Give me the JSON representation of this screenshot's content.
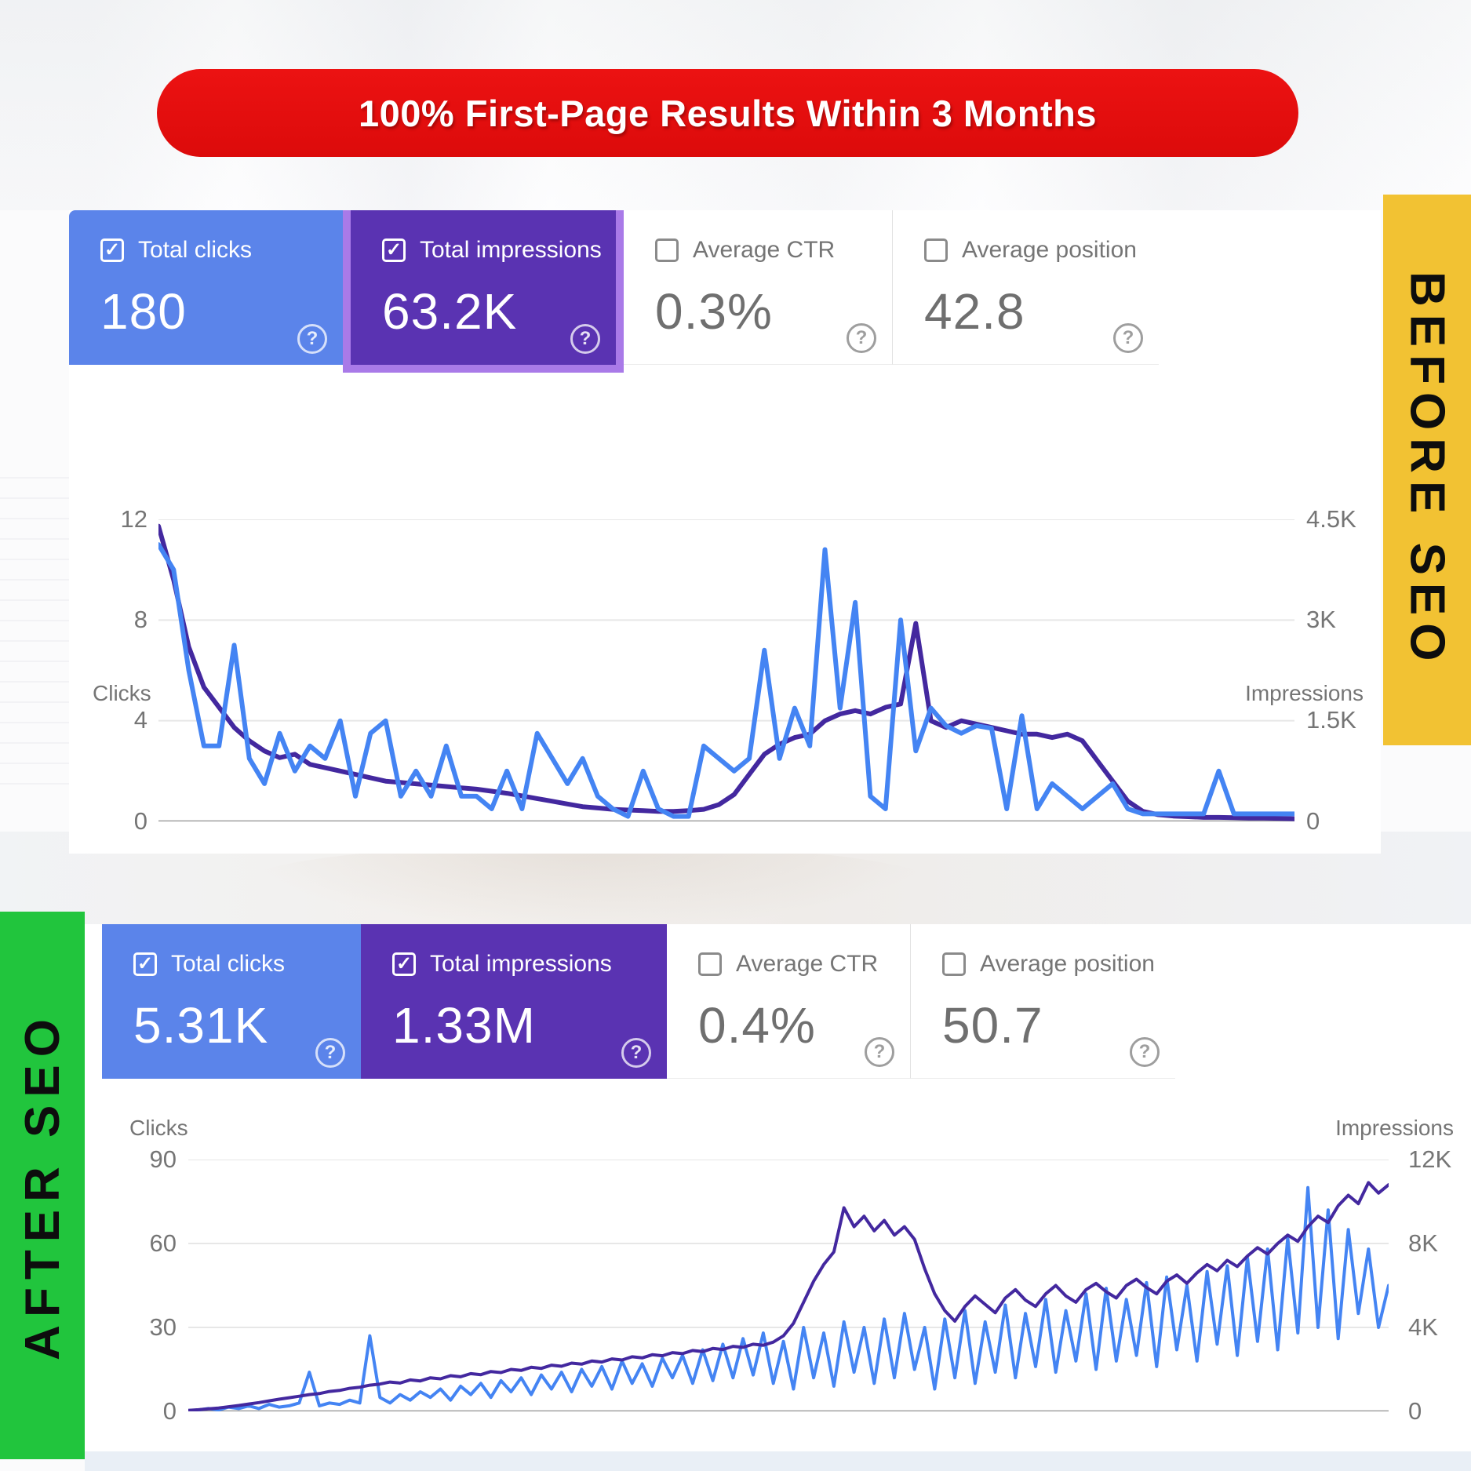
{
  "banner": {
    "text": "100% First-Page Results Within 3 Months"
  },
  "ribbons": {
    "before_label": "BEFORE SEO",
    "after_label": "AFTER SEO"
  },
  "colors": {
    "banner_red": "#e90f0f",
    "ribbon_yellow": "#f2c233",
    "ribbon_green": "#21c53d",
    "card_blue": "#5b84ea",
    "card_purple": "#5a33b2",
    "card_purple_outline": "#a97ae8",
    "line_blue": "#4484f3",
    "line_indigo": "#43289f",
    "muted_text": "#757575"
  },
  "before": {
    "cards": [
      {
        "label": "Total clicks",
        "value": "180",
        "selected": true
      },
      {
        "label": "Total impressions",
        "value": "63.2K",
        "selected": true
      },
      {
        "label": "Average CTR",
        "value": "0.3%",
        "selected": false
      },
      {
        "label": "Average position",
        "value": "42.8",
        "selected": false
      }
    ]
  },
  "after": {
    "cards": [
      {
        "label": "Total clicks",
        "value": "5.31K",
        "selected": true
      },
      {
        "label": "Total impressions",
        "value": "1.33M",
        "selected": true
      },
      {
        "label": "Average CTR",
        "value": "0.4%",
        "selected": false
      },
      {
        "label": "Average position",
        "value": "50.7",
        "selected": false
      }
    ]
  },
  "chart_data": [
    {
      "type": "line",
      "title": "Search performance before SEO",
      "grid": true,
      "legend_position": "none",
      "left_axis": {
        "label": "Clicks",
        "ticks": [
          "12",
          "8",
          "4",
          "0"
        ],
        "range": [
          0,
          12
        ]
      },
      "right_axis": {
        "label": "Impressions",
        "ticks": [
          "4.5K",
          "3K",
          "1.5K",
          "0"
        ],
        "range": [
          0,
          4500
        ]
      },
      "series": [
        {
          "name": "Impressions",
          "axis": "right",
          "color": "#43289f",
          "width": 6,
          "values": [
            4400,
            3600,
            2600,
            2000,
            1700,
            1400,
            1200,
            1050,
            950,
            1000,
            850,
            800,
            750,
            700,
            650,
            600,
            580,
            560,
            540,
            520,
            500,
            480,
            450,
            420,
            380,
            340,
            300,
            260,
            220,
            200,
            180,
            170,
            160,
            150,
            150,
            160,
            180,
            250,
            400,
            700,
            1000,
            1150,
            1250,
            1300,
            1500,
            1600,
            1650,
            1600,
            1700,
            1750,
            2950,
            1500,
            1400,
            1500,
            1450,
            1400,
            1350,
            1300,
            1300,
            1250,
            1300,
            1200,
            900,
            600,
            300,
            150,
            100,
            80,
            70,
            60,
            60,
            55,
            50,
            50,
            45,
            40
          ]
        },
        {
          "name": "Clicks",
          "axis": "left",
          "color": "#4484f3",
          "width": 6,
          "values": [
            11,
            10,
            6,
            3,
            3,
            7,
            2.5,
            1.5,
            3.5,
            2,
            3,
            2.5,
            4,
            1,
            3.5,
            4,
            1,
            2,
            1,
            3,
            1,
            1,
            0.5,
            2,
            0.5,
            3.5,
            2.5,
            1.5,
            2.5,
            1,
            0.5,
            0.2,
            2,
            0.5,
            0.2,
            0.2,
            3,
            2.5,
            2,
            2.5,
            6.8,
            2.5,
            4.5,
            3,
            10.8,
            4.5,
            8.7,
            1,
            0.5,
            8,
            2.8,
            4.5,
            3.8,
            3.5,
            3.8,
            3.7,
            0.5,
            4.2,
            0.5,
            1.5,
            1,
            0.5,
            1,
            1.5,
            0.5,
            0.3,
            0.3,
            0.3,
            0.3,
            0.3,
            2,
            0.3,
            0.3,
            0.3,
            0.3,
            0.3
          ]
        }
      ]
    },
    {
      "type": "line",
      "title": "Search performance after SEO",
      "grid": true,
      "legend_position": "none",
      "left_axis": {
        "label": "Clicks",
        "ticks": [
          "90",
          "60",
          "30",
          "0"
        ],
        "range": [
          0,
          90
        ]
      },
      "right_axis": {
        "label": "Impressions",
        "ticks": [
          "12K",
          "8K",
          "4K",
          "0"
        ],
        "range": [
          0,
          12000
        ]
      },
      "series": [
        {
          "name": "Clicks",
          "axis": "left",
          "color": "#4484f3",
          "width": 4,
          "values": [
            0.3,
            0.5,
            1,
            0.5,
            1.5,
            1,
            2,
            1,
            2.5,
            1.5,
            2,
            3,
            14,
            2,
            3,
            2.5,
            4,
            3,
            27,
            5,
            3,
            6,
            4,
            7,
            5,
            8,
            4,
            9,
            6,
            10,
            5,
            11,
            7,
            12,
            6,
            13,
            8,
            14,
            7,
            15,
            9,
            16,
            8,
            18,
            10,
            17,
            9,
            19,
            12,
            20,
            10,
            22,
            11,
            24,
            12,
            26,
            13,
            28,
            10,
            25,
            8,
            30,
            12,
            28,
            9,
            32,
            14,
            30,
            10,
            33,
            12,
            35,
            15,
            30,
            8,
            33,
            12,
            36,
            10,
            32,
            14,
            38,
            12,
            35,
            16,
            40,
            14,
            36,
            18,
            42,
            15,
            44,
            18,
            40,
            20,
            46,
            16,
            48,
            22,
            45,
            18,
            50,
            24,
            52,
            20,
            55,
            25,
            58,
            22,
            62,
            28,
            80,
            30,
            72,
            26,
            65,
            35,
            58,
            30,
            45
          ]
        },
        {
          "name": "Impressions",
          "axis": "right",
          "color": "#43289f",
          "width": 4,
          "values": [
            50,
            80,
            120,
            160,
            220,
            280,
            350,
            420,
            500,
            580,
            650,
            720,
            800,
            850,
            950,
            1000,
            1100,
            1150,
            1250,
            1300,
            1400,
            1350,
            1500,
            1450,
            1600,
            1550,
            1700,
            1650,
            1800,
            1750,
            1900,
            1850,
            2000,
            1950,
            2100,
            2050,
            2200,
            2150,
            2300,
            2250,
            2400,
            2350,
            2500,
            2450,
            2600,
            2550,
            2700,
            2650,
            2800,
            2750,
            2900,
            2850,
            3000,
            2950,
            3100,
            3050,
            3200,
            3150,
            3300,
            3600,
            4200,
            5200,
            6200,
            7000,
            7600,
            9700,
            8800,
            9300,
            8600,
            9100,
            8400,
            8800,
            8200,
            6800,
            5600,
            4800,
            4300,
            5000,
            5500,
            5100,
            4700,
            5400,
            5800,
            5300,
            5000,
            5600,
            6000,
            5500,
            5200,
            5800,
            6100,
            5700,
            5400,
            6000,
            6300,
            5900,
            5600,
            6200,
            6500,
            6100,
            6600,
            7000,
            6700,
            7200,
            6900,
            7400,
            7800,
            7500,
            8000,
            8400,
            8100,
            8800,
            9300,
            9000,
            9800,
            10300,
            9900,
            10900,
            10400,
            10800
          ]
        }
      ]
    }
  ]
}
